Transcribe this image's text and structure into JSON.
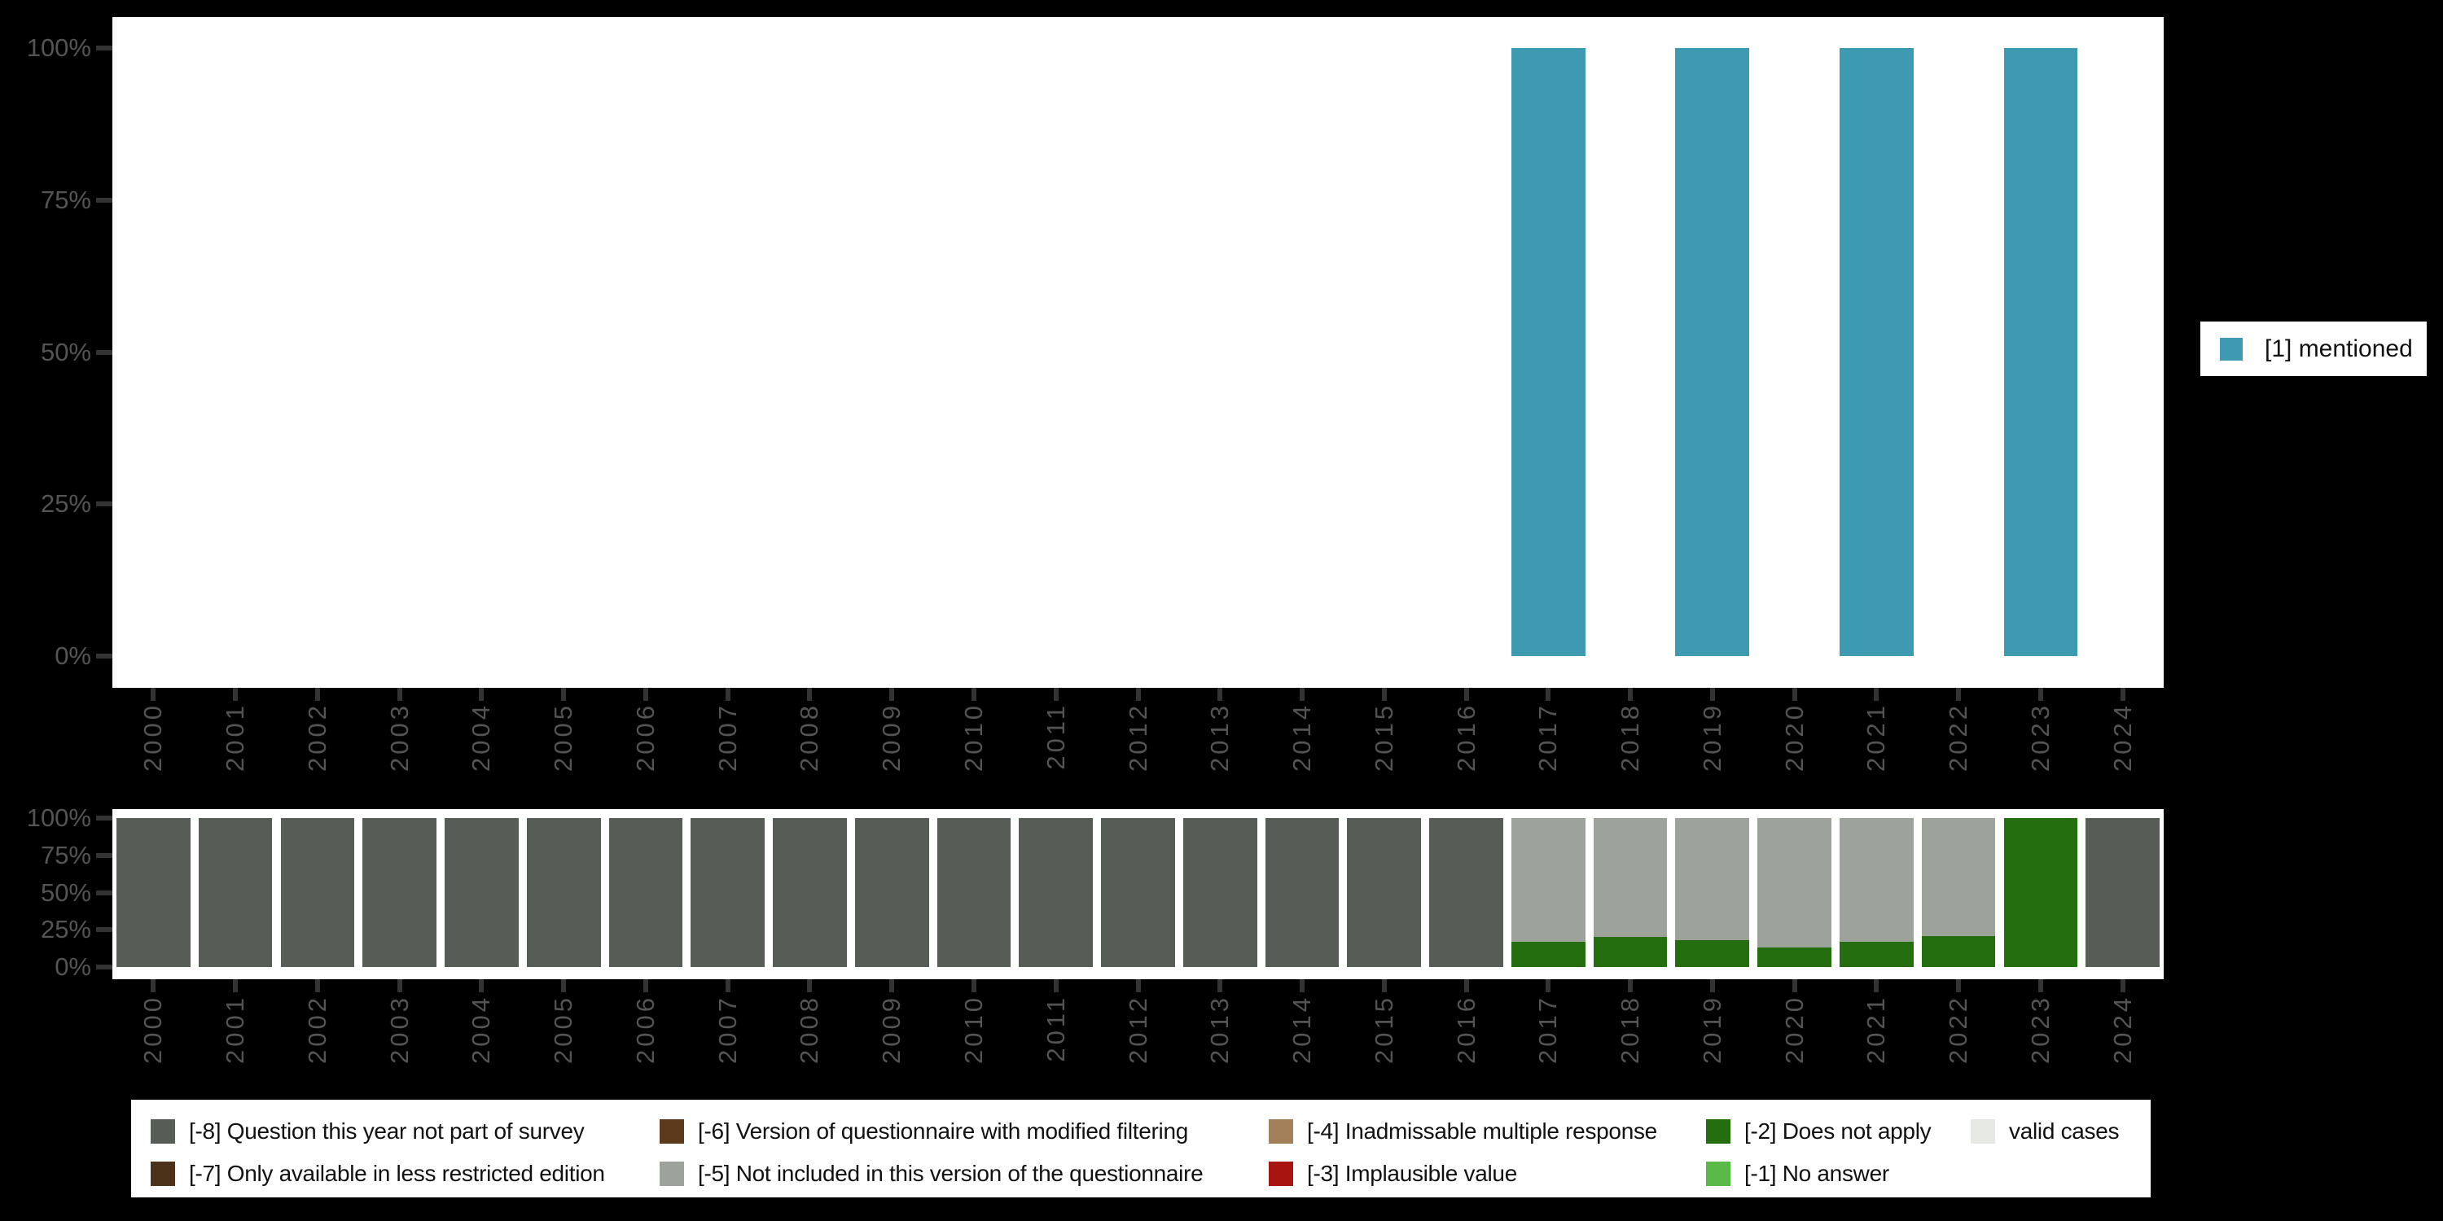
{
  "colors": {
    "mentioned": "#3D9AB1",
    "m8": "#565D56",
    "m7": "#4C3219",
    "m6": "#5D3A1B",
    "m5": "#9DA39B",
    "m4": "#A37F5A",
    "m3": "#A81511",
    "m2": "#256E0F",
    "m1": "#5ABA47",
    "valid": "#E5E8E3",
    "axis_text": "#545454",
    "tick": "#333333",
    "background": "#000000",
    "plot_background": "#FFFFFF"
  },
  "legend_right": {
    "label": "[1] mentioned",
    "color_key": "mentioned"
  },
  "legend_bottom": {
    "items": [
      {
        "label": "[-8] Question this year not part of survey",
        "color_key": "m8",
        "row": 0,
        "col": 0
      },
      {
        "label": "[-7] Only available in less restricted edition",
        "color_key": "m7",
        "row": 1,
        "col": 0
      },
      {
        "label": "[-6] Version of questionnaire with modified filtering",
        "color_key": "m6",
        "row": 0,
        "col": 1
      },
      {
        "label": "[-5] Not included in this version of the questionnaire",
        "color_key": "m5",
        "row": 1,
        "col": 1
      },
      {
        "label": "[-4] Inadmissable multiple response",
        "color_key": "m4",
        "row": 0,
        "col": 2
      },
      {
        "label": "[-3] Implausible value",
        "color_key": "m3",
        "row": 1,
        "col": 2
      },
      {
        "label": "[-2] Does not apply",
        "color_key": "m2",
        "row": 0,
        "col": 3
      },
      {
        "label": "[-1] No answer",
        "color_key": "m1",
        "row": 1,
        "col": 3
      },
      {
        "label": "valid cases",
        "color_key": "valid",
        "row": 0,
        "col": 4
      }
    ]
  },
  "chart_data": [
    {
      "id": "top",
      "type": "bar",
      "title": "",
      "xlabel": "",
      "ylabel": "",
      "grid": false,
      "legend_position": "right",
      "ylim": [
        0,
        100
      ],
      "yticks": [
        {
          "label": "0%",
          "value": 0
        },
        {
          "label": "25%",
          "value": 25
        },
        {
          "label": "50%",
          "value": 50
        },
        {
          "label": "75%",
          "value": 75
        },
        {
          "label": "100%",
          "value": 100
        }
      ],
      "categories": [
        "2000",
        "2001",
        "2002",
        "2003",
        "2004",
        "2005",
        "2006",
        "2007",
        "2008",
        "2009",
        "2010",
        "2011",
        "2012",
        "2013",
        "2014",
        "2015",
        "2016",
        "2017",
        "2018",
        "2019",
        "2020",
        "2021",
        "2022",
        "2023",
        "2024"
      ],
      "series": [
        {
          "name": "[1] mentioned",
          "color_key": "mentioned",
          "values": [
            0,
            0,
            0,
            0,
            0,
            0,
            0,
            0,
            0,
            0,
            0,
            0,
            0,
            0,
            0,
            0,
            0,
            100,
            0,
            100,
            0,
            100,
            0,
            100,
            0
          ]
        }
      ]
    },
    {
      "id": "bottom",
      "type": "stacked-bar",
      "title": "",
      "xlabel": "",
      "ylabel": "",
      "grid": false,
      "stack_order": "bottom-to-top",
      "ylim": [
        0,
        100
      ],
      "yticks": [
        {
          "label": "0%",
          "value": 0
        },
        {
          "label": "25%",
          "value": 25
        },
        {
          "label": "50%",
          "value": 50
        },
        {
          "label": "75%",
          "value": 75
        },
        {
          "label": "100%",
          "value": 100
        }
      ],
      "categories": [
        "2000",
        "2001",
        "2002",
        "2003",
        "2004",
        "2005",
        "2006",
        "2007",
        "2008",
        "2009",
        "2010",
        "2011",
        "2012",
        "2013",
        "2014",
        "2015",
        "2016",
        "2017",
        "2018",
        "2019",
        "2020",
        "2021",
        "2022",
        "2023",
        "2024"
      ],
      "series": [
        {
          "name": "[-2] Does not apply",
          "color_key": "m2",
          "values": [
            0,
            0,
            0,
            0,
            0,
            0,
            0,
            0,
            0,
            0,
            0,
            0,
            0,
            0,
            0,
            0,
            0,
            17,
            20,
            18,
            13,
            17,
            20.5,
            100,
            0
          ]
        },
        {
          "name": "[-5] Not included in this version of the questionnaire",
          "color_key": "m5",
          "values": [
            0,
            0,
            0,
            0,
            0,
            0,
            0,
            0,
            0,
            0,
            0,
            0,
            0,
            0,
            0,
            0,
            0,
            83,
            80,
            82,
            87,
            83,
            79.5,
            0,
            0
          ]
        },
        {
          "name": "[-8] Question this year not part of survey",
          "color_key": "m8",
          "values": [
            100,
            100,
            100,
            100,
            100,
            100,
            100,
            100,
            100,
            100,
            100,
            100,
            100,
            100,
            100,
            100,
            100,
            0,
            0,
            0,
            0,
            0,
            0,
            0,
            100
          ]
        }
      ]
    }
  ]
}
